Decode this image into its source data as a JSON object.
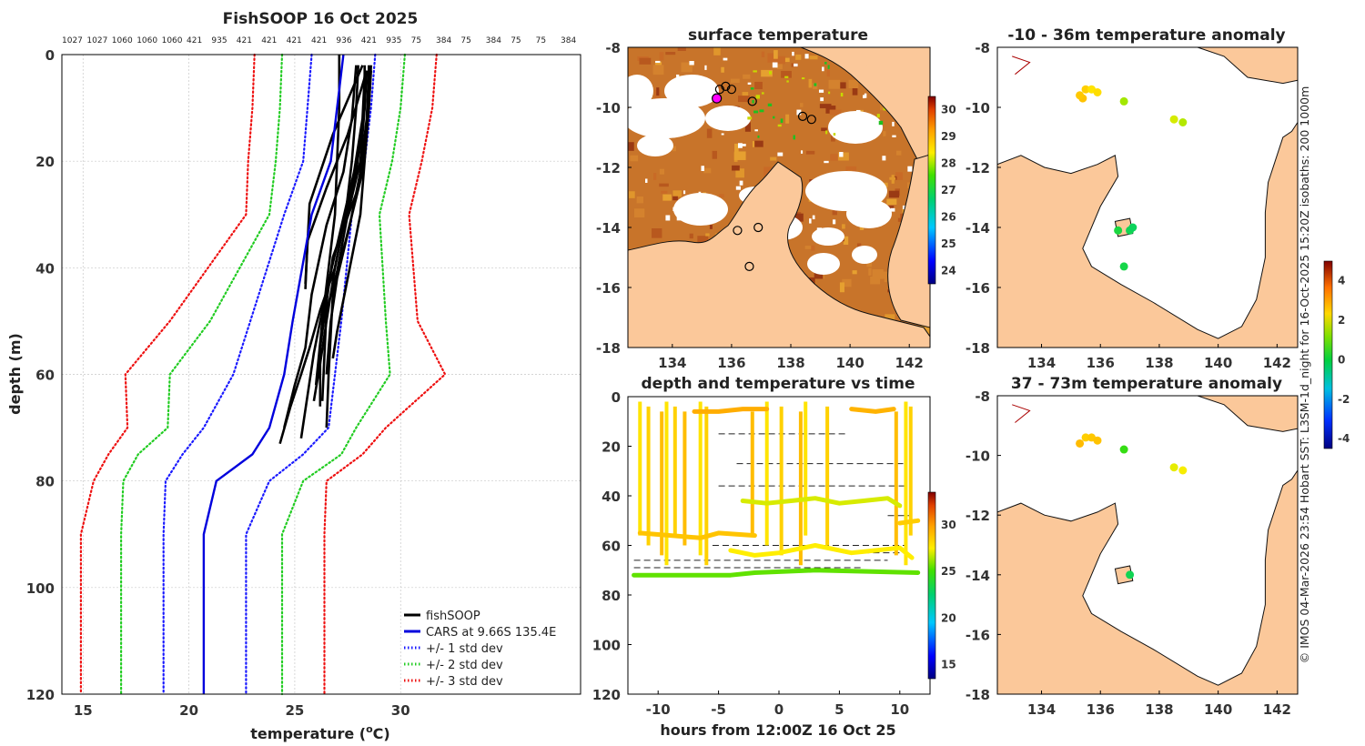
{
  "credit": "© IMOS 04-Mar-2026 23:54 Hobart SST: L3SM-1d_night for 16-Oct-2025 15:20Z isobaths: 200 1000m",
  "colors": {
    "fish": "#000000",
    "cars": "#0000dd",
    "sd1": "#1a1aff",
    "sd2": "#22cc22",
    "sd3": "#ee1111",
    "land": "#fbc89a",
    "ocean": "#ffffff"
  },
  "chart_data": [
    {
      "type": "line",
      "title": "FishSOOP 16 Oct 2025",
      "xlabel": "temperature (",
      "xlabel_sup": "o",
      "xlabel_end": "C)",
      "ylabel": "depth (m)",
      "xlim": [
        14,
        38.5
      ],
      "ylim": [
        120,
        0
      ],
      "xticks": [
        15,
        20,
        25,
        30
      ],
      "yticks": [
        0,
        20,
        40,
        60,
        80,
        100,
        120
      ],
      "top_labels": [
        "1027",
        "1027",
        "1060",
        "1060",
        "1060",
        "421",
        "935",
        "421",
        "421",
        "421",
        "421",
        "936",
        "421",
        "935",
        "75",
        "384",
        "75",
        "384",
        "75",
        "75",
        "384"
      ],
      "depth": [
        0,
        10,
        20,
        30,
        50,
        60,
        70,
        75,
        80,
        90,
        120
      ],
      "series": [
        {
          "name": "fishSOOP",
          "style": "solid",
          "profiles": [
            {
              "t": [
                28.3,
                28.3,
                28.1,
                27.5,
                26.8,
                26.6,
                26.5
              ],
              "d": [
                2,
                10,
                20,
                30,
                45,
                60,
                70
              ]
            },
            {
              "t": [
                28.6,
                28.5,
                28.2,
                27.4,
                26.5,
                26.3
              ],
              "d": [
                2,
                10,
                22,
                35,
                48,
                65
              ]
            },
            {
              "t": [
                28.5,
                28.4,
                28.0,
                26.8,
                26.2,
                26.2
              ],
              "d": [
                3,
                12,
                25,
                38,
                55,
                66
              ]
            },
            {
              "t": [
                28.4,
                27.5,
                26.5,
                25.6,
                25.5
              ],
              "d": [
                3,
                15,
                25,
                35,
                44
              ]
            },
            {
              "t": [
                28.2,
                26.8,
                25.7,
                25.5
              ],
              "d": [
                2,
                15,
                28,
                43
              ]
            },
            {
              "t": [
                27.9,
                27.7,
                27.3,
                26.5,
                25.8,
                25.5,
                25.0,
                24.5
              ],
              "d": [
                2,
                12,
                22,
                32,
                45,
                55,
                62,
                70
              ]
            },
            {
              "t": [
                28.5,
                28.5,
                28.3,
                28.1,
                27.6,
                27.0,
                26.8
              ],
              "d": [
                2,
                10,
                20,
                30,
                40,
                52,
                57
              ]
            },
            {
              "t": [
                28.4,
                28.3,
                27.9,
                27.3,
                26.9,
                26.2,
                25.7,
                25.3,
                24.8,
                24.3
              ],
              "d": [
                3,
                10,
                22,
                32,
                40,
                48,
                55,
                60,
                66,
                73
              ]
            },
            {
              "t": [
                28.6,
                28.5,
                28.2,
                27.6,
                27.0,
                26.7,
                26.5
              ],
              "d": [
                3,
                10,
                20,
                32,
                42,
                50,
                60
              ]
            },
            {
              "t": [
                28.3,
                28.2,
                27.8,
                27.1,
                26.4,
                25.9,
                25.6,
                25.3
              ],
              "d": [
                4,
                12,
                22,
                34,
                46,
                56,
                64,
                72
              ]
            },
            {
              "t": [
                28.0,
                27.9,
                27.7,
                27.4,
                26.9,
                26.5,
                26.2,
                25.9
              ],
              "d": [
                2,
                10,
                20,
                30,
                40,
                50,
                58,
                65
              ]
            },
            {
              "t": [
                27.1,
                27.1,
                27.0,
                26.9,
                26.6,
                26.3,
                26.0
              ],
              "d": [
                0,
                10,
                20,
                30,
                40,
                50,
                62
              ]
            }
          ]
        },
        {
          "name": "CARS at 9.66S 135.4E",
          "style": "solid",
          "t": [
            27.3,
            27.0,
            26.7,
            25.8,
            24.9,
            24.5,
            23.8,
            23.0,
            21.3,
            20.7,
            20.7
          ]
        },
        {
          "name": "+/- 1 std dev",
          "style": "dotted",
          "t_lo": [
            25.8,
            25.6,
            25.4,
            24.5,
            22.9,
            22.1,
            20.7,
            19.7,
            18.9,
            18.8,
            18.8
          ],
          "t_hi": [
            28.8,
            28.6,
            28.3,
            27.7,
            27.2,
            26.9,
            26.6,
            25.4,
            23.8,
            22.7,
            22.7
          ]
        },
        {
          "name": "+/- 2 std dev",
          "style": "dotted",
          "t_lo": [
            24.4,
            24.3,
            24.1,
            23.8,
            21.0,
            19.1,
            19.0,
            17.6,
            16.9,
            16.8,
            16.8
          ],
          "t_hi": [
            30.2,
            30.0,
            29.6,
            29.0,
            29.3,
            29.5,
            27.9,
            27.2,
            25.4,
            24.4,
            24.4
          ]
        },
        {
          "name": "+/- 3 std dev",
          "style": "dotted",
          "t_lo": [
            23.1,
            23.0,
            22.8,
            22.7,
            19.1,
            17.0,
            17.1,
            16.2,
            15.5,
            14.9,
            14.9
          ],
          "t_hi": [
            31.7,
            31.5,
            31.0,
            30.4,
            30.8,
            32.1,
            29.3,
            28.2,
            26.5,
            26.4,
            26.4
          ]
        }
      ]
    },
    {
      "type": "heatmap",
      "title": "surface temperature",
      "xlim": [
        132.5,
        142.7
      ],
      "ylim": [
        -18,
        -8
      ],
      "xticks": [
        134,
        136,
        138,
        140,
        142
      ],
      "yticks": [
        -8,
        -10,
        -12,
        -14,
        -16,
        -18
      ],
      "colorbar": {
        "min": 23.5,
        "max": 30.5,
        "ticks": [
          24,
          25,
          26,
          27,
          28,
          29,
          30
        ]
      },
      "markers": [
        [
          135.6,
          -9.4
        ],
        [
          135.8,
          -9.3
        ],
        [
          136.0,
          -9.4
        ],
        [
          136.7,
          -9.8
        ],
        [
          138.4,
          -10.3
        ],
        [
          138.7,
          -10.4
        ],
        [
          136.2,
          -14.1
        ],
        [
          136.9,
          -14.0
        ],
        [
          136.6,
          -15.3
        ]
      ],
      "highlight": [
        135.5,
        -9.7
      ]
    },
    {
      "type": "scatter",
      "title": "depth and temperature vs time",
      "xlabel": "hours from 12:00Z 16 Oct 25",
      "xlim": [
        -12.5,
        12.5
      ],
      "ylim": [
        120,
        0
      ],
      "xticks": [
        -10,
        -5,
        0,
        5,
        10
      ],
      "yticks": [
        0,
        20,
        40,
        60,
        80,
        100,
        120
      ],
      "colorbar": {
        "min": 13.5,
        "max": 33.5,
        "ticks": [
          15,
          20,
          25,
          30
        ]
      },
      "tracks": [
        {
          "temp": 25.5,
          "pts": [
            [
              -12,
              72
            ],
            [
              -4,
              72
            ],
            [
              -2,
              71
            ],
            [
              3,
              70
            ],
            [
              11.5,
              71
            ]
          ]
        },
        {
          "temp": 28.8,
          "pts": [
            [
              -11.5,
              55
            ],
            [
              -6.5,
              57
            ],
            [
              -5,
              55
            ],
            [
              -2,
              56
            ]
          ]
        },
        {
          "temp": 27.5,
          "pts": [
            [
              -4,
              62
            ],
            [
              -2,
              64
            ],
            [
              0,
              63
            ],
            [
              3,
              60
            ],
            [
              6,
              63
            ],
            [
              8,
              62
            ],
            [
              10,
              61
            ],
            [
              11,
              65
            ]
          ]
        },
        {
          "temp": 27.0,
          "pts": [
            [
              -3,
              42
            ],
            [
              -1,
              43
            ],
            [
              1,
              42
            ],
            [
              3,
              41
            ],
            [
              5,
              43
            ],
            [
              7,
              42
            ],
            [
              9,
              41
            ],
            [
              10,
              44
            ]
          ]
        },
        {
          "temp": 29.5,
          "pts": [
            [
              -7,
              6
            ],
            [
              -5,
              6
            ],
            [
              -3,
              5
            ],
            [
              -1,
              5
            ]
          ]
        },
        {
          "temp": 29.3,
          "pts": [
            [
              6,
              5
            ],
            [
              8,
              6
            ],
            [
              9.5,
              5
            ]
          ]
        },
        {
          "temp": 28.5,
          "pts": [
            [
              10,
              51
            ],
            [
              11.5,
              50
            ]
          ]
        }
      ],
      "vertical_dives": [
        -11.5,
        -10.8,
        -9.7,
        -9.3,
        -8.6,
        -7.8,
        -6.5,
        -6.0,
        -2.2,
        -1.0,
        0.2,
        1.8,
        2.2,
        4.0,
        9.7,
        10.5,
        10.9
      ],
      "dashed_levels": [
        [
          -5.0,
          5.5,
          15
        ],
        [
          -3.5,
          10.5,
          27
        ],
        [
          -5.0,
          10.5,
          36
        ],
        [
          -5.5,
          10.5,
          60
        ],
        [
          5.3,
          10.5,
          63
        ],
        [
          -12,
          9,
          66
        ],
        [
          -12,
          7,
          69
        ],
        [
          9,
          11,
          48
        ]
      ]
    },
    {
      "type": "scatter",
      "title": "-10 - 36m temperature anomaly",
      "xlim": [
        132.5,
        142.7
      ],
      "ylim": [
        -18,
        -8
      ],
      "xticks": [
        134,
        136,
        138,
        140,
        142
      ],
      "yticks": [
        -8,
        -10,
        -12,
        -14,
        -16,
        -18
      ],
      "points": [
        [
          135.5,
          -9.4,
          2.6
        ],
        [
          135.7,
          -9.4,
          2.3
        ],
        [
          135.9,
          -9.5,
          2.4
        ],
        [
          135.4,
          -9.7,
          2.8
        ],
        [
          135.3,
          -9.6,
          2.7
        ],
        [
          136.8,
          -9.8,
          1.6
        ],
        [
          138.5,
          -10.4,
          1.9
        ],
        [
          138.8,
          -10.5,
          1.7
        ],
        [
          136.6,
          -14.1,
          0.3
        ],
        [
          137.0,
          -14.1,
          0.1
        ],
        [
          137.1,
          -14.0,
          0.0
        ],
        [
          136.8,
          -15.3,
          0.2
        ]
      ]
    },
    {
      "type": "scatter",
      "title": "37 - 73m temperature anomaly",
      "xlim": [
        132.5,
        142.7
      ],
      "ylim": [
        -18,
        -8
      ],
      "xticks": [
        134,
        136,
        138,
        140,
        142
      ],
      "yticks": [
        -8,
        -10,
        -12,
        -14,
        -16,
        -18
      ],
      "points": [
        [
          135.5,
          -9.4,
          2.6
        ],
        [
          135.7,
          -9.4,
          2.7
        ],
        [
          135.9,
          -9.5,
          2.8
        ],
        [
          135.3,
          -9.6,
          2.9
        ],
        [
          136.8,
          -9.8,
          0.8
        ],
        [
          138.5,
          -10.4,
          2.0
        ],
        [
          138.8,
          -10.5,
          2.1
        ],
        [
          137.0,
          -14.0,
          0.1
        ]
      ],
      "colorbar": {
        "min": -4.5,
        "max": 5,
        "ticks": [
          4,
          2,
          0,
          -2,
          -4
        ]
      }
    }
  ]
}
